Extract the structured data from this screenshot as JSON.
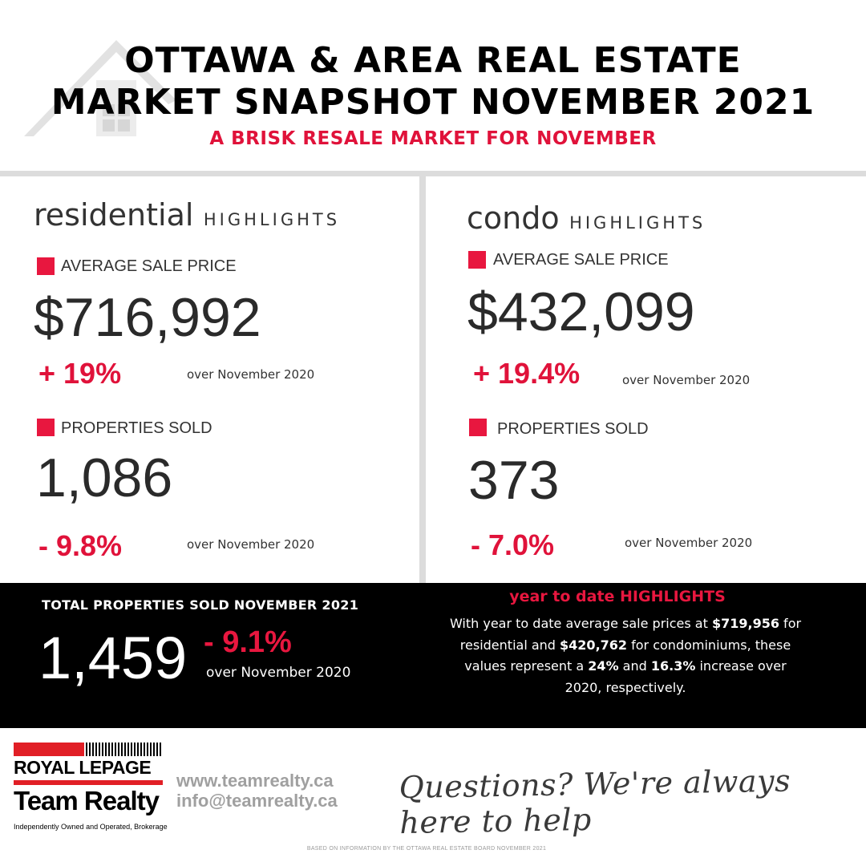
{
  "header": {
    "title_line_1": "OTTAWA & AREA REAL ESTATE",
    "title_line_2": "MARKET SNAPSHOT NOVEMBER 2021",
    "subtitle": "A BRISK RESALE MARKET FOR NOVEMBER"
  },
  "residential": {
    "title_word": "residential",
    "title_sub": "HIGHLIGHTS",
    "avg_label": "AVERAGE SALE PRICE",
    "avg_value": "$716,992",
    "avg_change": "+ 19%",
    "avg_compare": "over November 2020",
    "sold_label": "PROPERTIES SOLD",
    "sold_value": "1,086",
    "sold_change": "- 9.8%",
    "sold_compare": "over November 2020"
  },
  "condo": {
    "title_word": "condo",
    "title_sub": "HIGHLIGHTS",
    "avg_label": "AVERAGE SALE PRICE",
    "avg_value": "$432,099",
    "avg_change": "+ 19.4%",
    "avg_compare": "over November 2020",
    "sold_label": "PROPERTIES SOLD",
    "sold_value": "373",
    "sold_change": "- 7.0%",
    "sold_compare": "over November 2020"
  },
  "total": {
    "heading": "TOTAL PROPERTIES SOLD NOVEMBER 2021",
    "value": "1,459",
    "change": "- 9.1%",
    "compare": "over November 2020"
  },
  "ytd": {
    "title": "year to date HIGHLIGHTS",
    "t1": "With year to date average sale prices at ",
    "v1": "$719,956",
    "t2": " for residential and ",
    "v2": "$420,762",
    "t3": " for condominiums, these values represent a ",
    "v3": "24%",
    "t4": " and ",
    "v4": "16.3%",
    "t5": " increase over 2020, respectively."
  },
  "footer": {
    "logo_line_1": "ROYAL LEPAGE",
    "logo_line_2": "Team Realty",
    "logo_tagline": "Independently Owned and Operated, Brokerage",
    "website": "www.teamrealty.ca",
    "email": "info@teamrealty.ca",
    "tagline": "Questions? We're always here to help",
    "source_note": "BASED ON INFORMATION BY THE OTTAWA REAL ESTATE BOARD NOVEMBER 2021"
  },
  "colors": {
    "accent_red": "#e0123a",
    "black_band": "#000000",
    "divider_gray": "#dcdcdc"
  },
  "icons": [
    "house-watermark-icon",
    "red-square-bullet-icon"
  ]
}
